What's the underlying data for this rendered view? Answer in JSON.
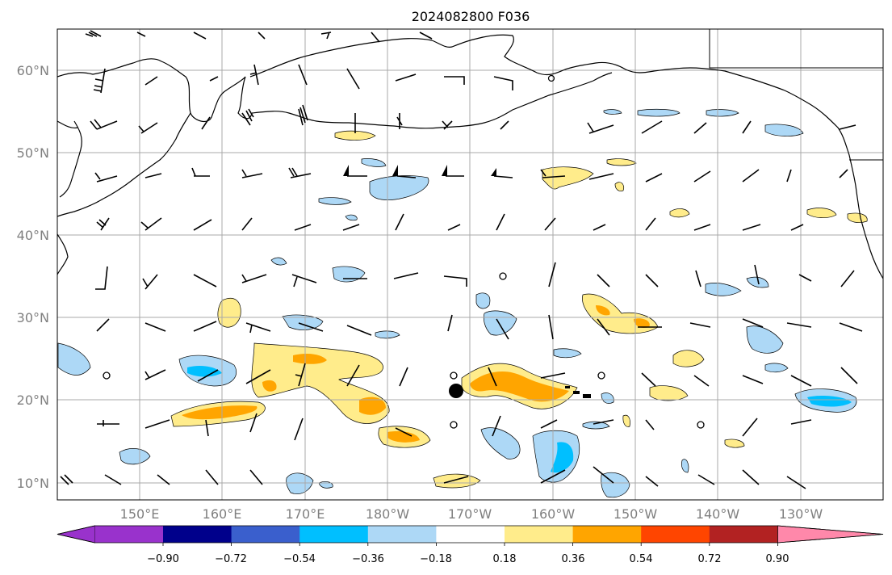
{
  "title": "2024082800 F036",
  "axes": {
    "lat_labels": [
      "60°N",
      "50°N",
      "40°N",
      "30°N",
      "20°N",
      "10°N"
    ],
    "lon_labels": [
      "150°E",
      "160°E",
      "170°E",
      "180°W",
      "170°W",
      "160°W",
      "150°W",
      "140°W",
      "130°W"
    ]
  },
  "colorbar": {
    "tick_labels": [
      "−0.90",
      "−0.72",
      "−0.54",
      "−0.36",
      "−0.18",
      "0.18",
      "0.36",
      "0.54",
      "0.72",
      "0.90"
    ],
    "bins": [
      "#9932cc",
      "#00008b",
      "#3a5fcd",
      "#00bfff",
      "#add8f6",
      "#ffffff",
      "#ffec8b",
      "#ffa500",
      "#ff4500",
      "#b22222",
      "#ff88aa"
    ],
    "extend": "both"
  },
  "colors": {
    "positive_light": "#ffec8b",
    "positive_mid": "#ffa500",
    "negative_light": "#add8f6",
    "negative_mid": "#00bfff",
    "grid": "#a9a9a9",
    "coast": "#000000"
  },
  "grid": true,
  "wind_barbs": true,
  "marker": "filled-circle"
}
